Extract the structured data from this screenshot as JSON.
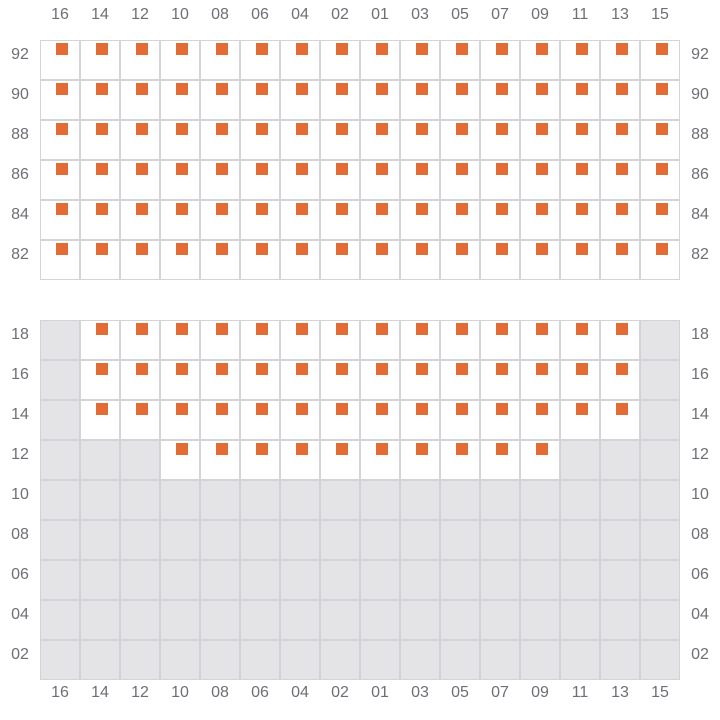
{
  "columns": [
    "16",
    "14",
    "12",
    "10",
    "08",
    "06",
    "04",
    "02",
    "01",
    "03",
    "05",
    "07",
    "09",
    "11",
    "13",
    "15"
  ],
  "colors": {
    "seat": "#e36c35",
    "unavailable": "#e4e4e6",
    "border": "#d4d4d8",
    "label": "#6e6e76"
  },
  "sections": [
    {
      "rows": [
        {
          "label": "92",
          "seats": [
            0,
            15
          ]
        },
        {
          "label": "90",
          "seats": [
            0,
            15
          ]
        },
        {
          "label": "88",
          "seats": [
            0,
            15
          ]
        },
        {
          "label": "86",
          "seats": [
            0,
            15
          ]
        },
        {
          "label": "84",
          "seats": [
            0,
            15
          ]
        },
        {
          "label": "82",
          "seats": [
            0,
            15
          ]
        }
      ]
    },
    {
      "rows": [
        {
          "label": "18",
          "seats": [
            1,
            14
          ]
        },
        {
          "label": "16",
          "seats": [
            1,
            14
          ]
        },
        {
          "label": "14",
          "seats": [
            1,
            14
          ]
        },
        {
          "label": "12",
          "seats": [
            3,
            12
          ]
        },
        {
          "label": "10",
          "seats": null
        },
        {
          "label": "08",
          "seats": null
        },
        {
          "label": "06",
          "seats": null
        },
        {
          "label": "04",
          "seats": null
        },
        {
          "label": "02",
          "seats": null
        }
      ]
    }
  ]
}
